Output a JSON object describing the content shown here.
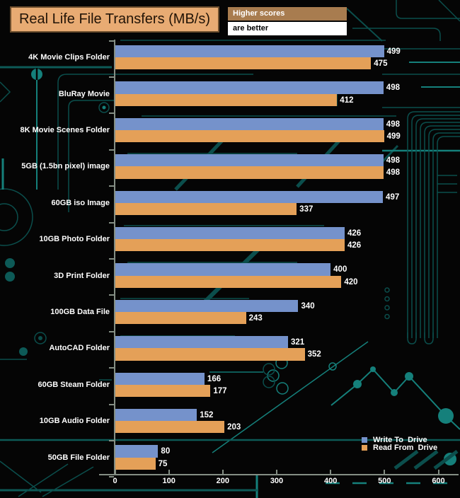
{
  "title": {
    "text": "Real Life File Transfers (MB/s)"
  },
  "banner": {
    "top": "Higher scores",
    "bottom": "are better"
  },
  "chart_data": {
    "type": "bar",
    "orientation": "horizontal",
    "title": "Real Life File Transfers (MB/s)",
    "units": "MB/s",
    "categories": [
      "4K Movie Clips Folder",
      "BluRay Movie",
      "8K Movie Scenes Folder",
      "5GB (1.5bn pixel) image",
      "60GB iso Image",
      "10GB Photo Folder",
      "3D Print Folder",
      "100GB Data File",
      "AutoCAD Folder",
      "60GB Steam Folder",
      "10GB Audio Folder",
      "50GB File Folder"
    ],
    "series": [
      {
        "name": "Write To  Drive",
        "color": "#7592cb",
        "values": [
          499,
          498,
          498,
          498,
          497,
          426,
          400,
          340,
          321,
          166,
          152,
          80
        ]
      },
      {
        "name": "Read From  Drive",
        "color": "#e4a058",
        "values": [
          475,
          412,
          499,
          498,
          337,
          426,
          420,
          243,
          352,
          177,
          203,
          75
        ]
      }
    ],
    "xlim": [
      0,
      600
    ],
    "xticks": [
      0,
      100,
      200,
      300,
      400,
      500,
      600
    ],
    "value_labels": true,
    "legend_position": "bottom-right",
    "note": "Higher scores are better"
  },
  "colors": {
    "background": "#050505",
    "bar_blue": "#7592cb",
    "bar_orange": "#e4a058",
    "axis": "#848e84",
    "label_text": "#ffffff",
    "title_bg": "#e8ab73",
    "title_border": "#6e4f2e",
    "title_text": "#221407",
    "banner_top_bg": "#a87c4f",
    "banner_top_text": "#ffffff",
    "banner_bottom_bg": "#ffffff",
    "banner_bottom_text": "#000000",
    "circuit_dark": "#0b4e4c",
    "circuit_mid": "#0d5a57",
    "circuit_bright": "#15807b"
  }
}
